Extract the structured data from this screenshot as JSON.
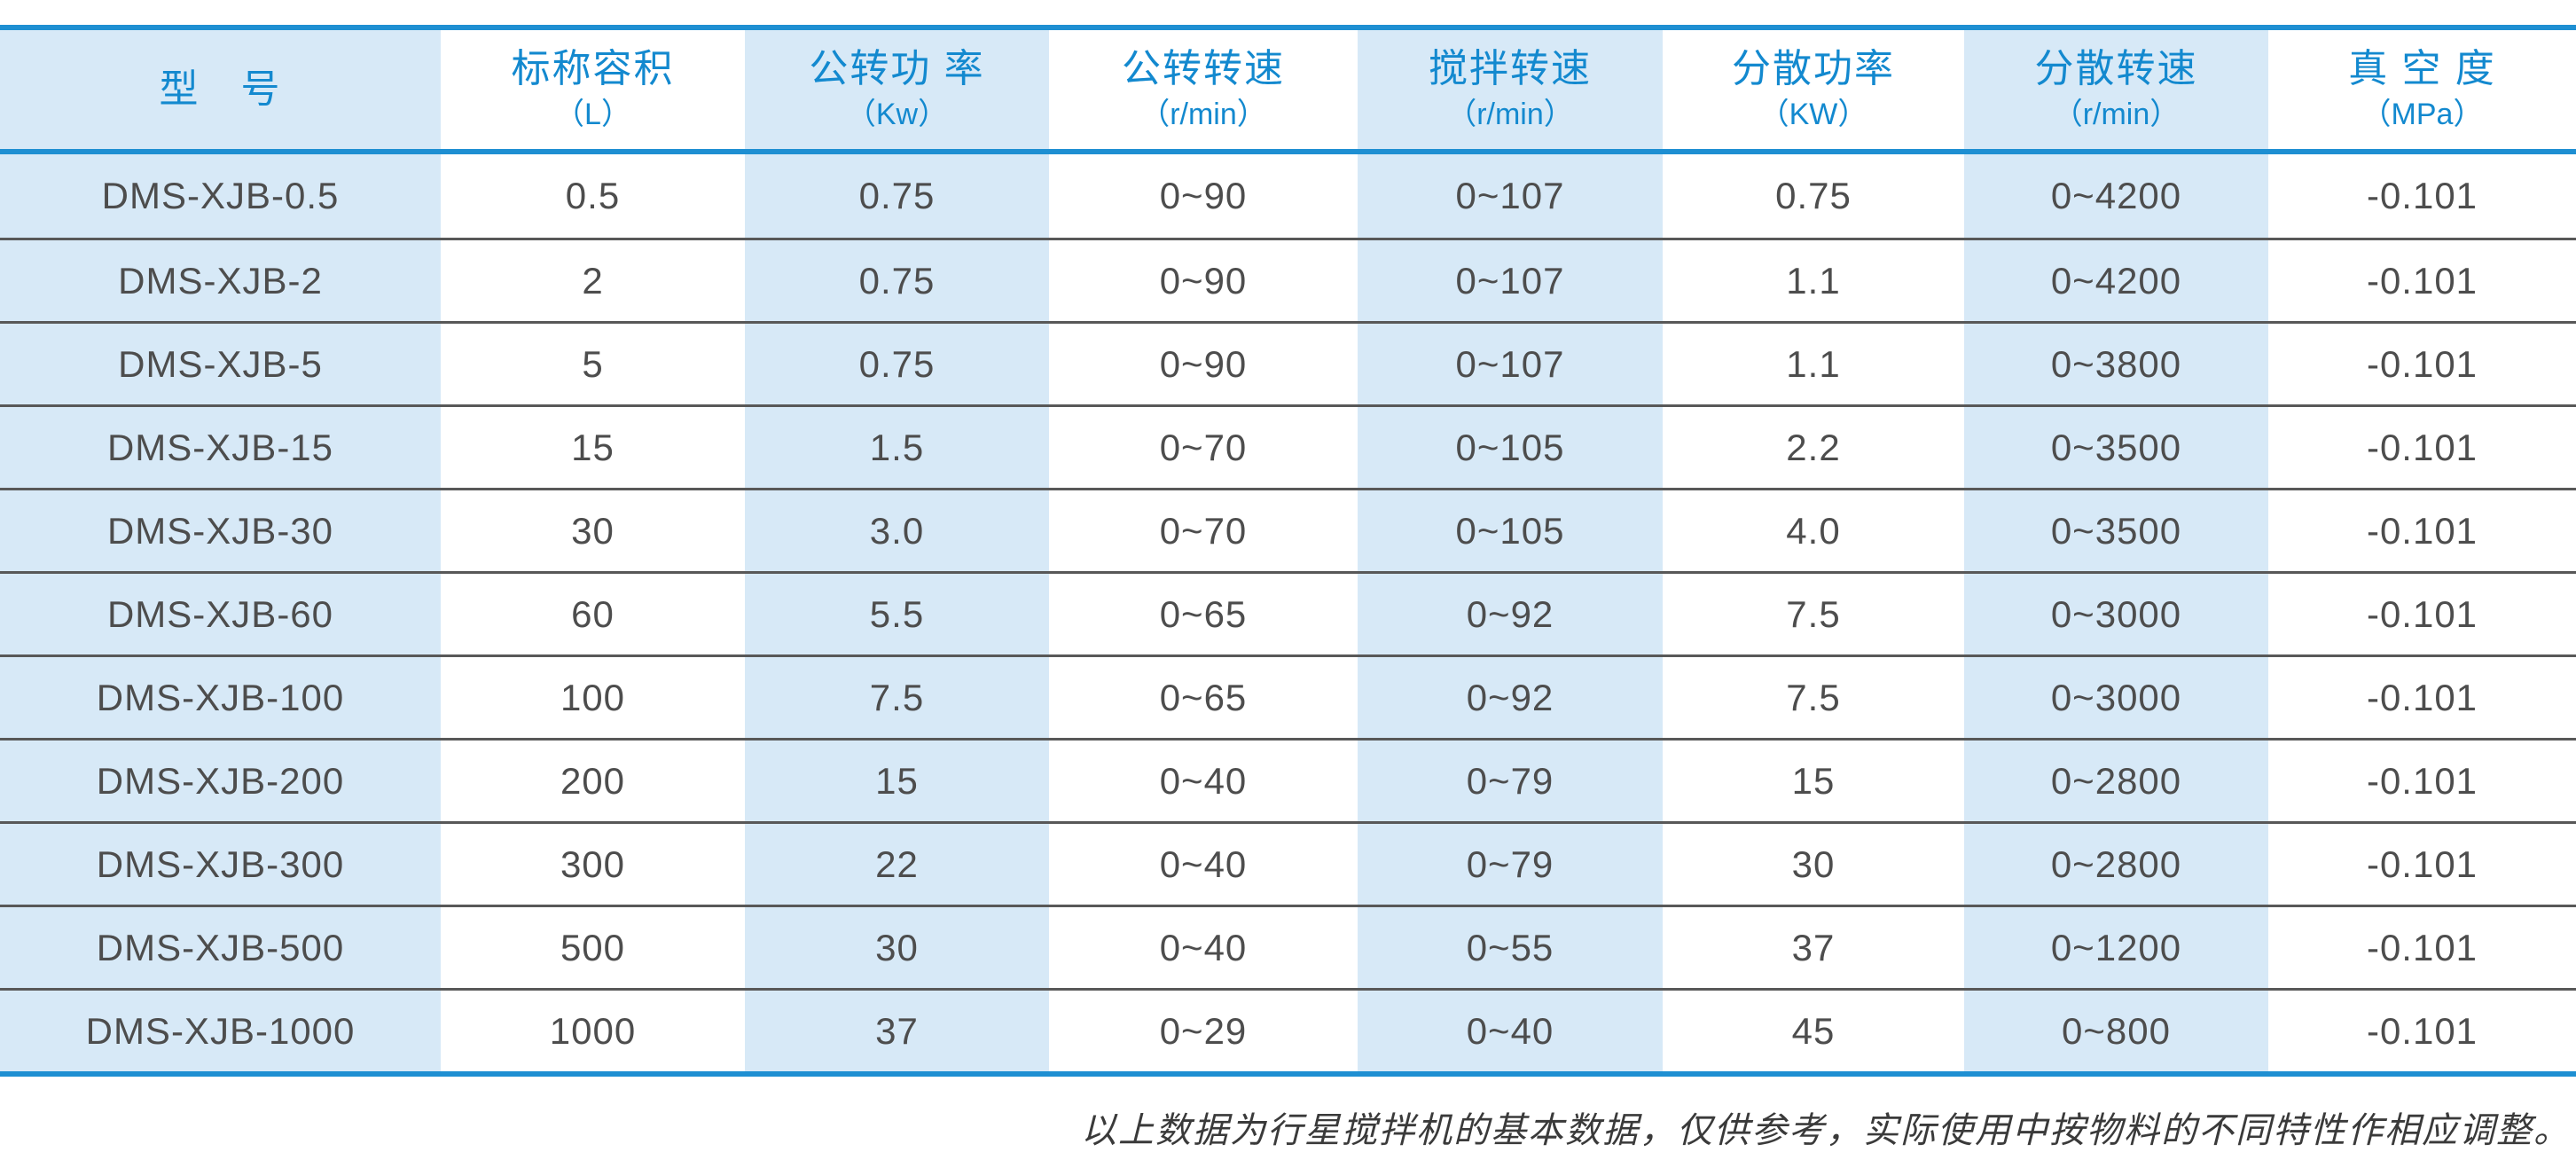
{
  "table": {
    "columns": [
      {
        "title": "型　号",
        "unit": ""
      },
      {
        "title": "标称容积",
        "unit": "（L）"
      },
      {
        "title": "公转功 率",
        "unit": "（Kw）"
      },
      {
        "title": "公转转速",
        "unit": "（r/min）"
      },
      {
        "title": "搅拌转速",
        "unit": "（r/min）"
      },
      {
        "title": "分散功率",
        "unit": "（KW）"
      },
      {
        "title": "分散转速",
        "unit": "（r/min）"
      },
      {
        "title": "真 空 度",
        "unit": "（MPa）"
      }
    ],
    "rows": [
      [
        "DMS-XJB-0.5",
        "0.5",
        "0.75",
        "0~90",
        "0~107",
        "0.75",
        "0~4200",
        "-0.101"
      ],
      [
        "DMS-XJB-2",
        "2",
        "0.75",
        "0~90",
        "0~107",
        "1.1",
        "0~4200",
        "-0.101"
      ],
      [
        "DMS-XJB-5",
        "5",
        "0.75",
        "0~90",
        "0~107",
        "1.1",
        "0~3800",
        "-0.101"
      ],
      [
        "DMS-XJB-15",
        "15",
        "1.5",
        "0~70",
        "0~105",
        "2.2",
        "0~3500",
        "-0.101"
      ],
      [
        "DMS-XJB-30",
        "30",
        "3.0",
        "0~70",
        "0~105",
        "4.0",
        "0~3500",
        "-0.101"
      ],
      [
        "DMS-XJB-60",
        "60",
        "5.5",
        "0~65",
        "0~92",
        "7.5",
        "0~3000",
        "-0.101"
      ],
      [
        "DMS-XJB-100",
        "100",
        "7.5",
        "0~65",
        "0~92",
        "7.5",
        "0~3000",
        "-0.101"
      ],
      [
        "DMS-XJB-200",
        "200",
        "15",
        "0~40",
        "0~79",
        "15",
        "0~2800",
        "-0.101"
      ],
      [
        "DMS-XJB-300",
        "300",
        "22",
        "0~40",
        "0~79",
        "30",
        "0~2800",
        "-0.101"
      ],
      [
        "DMS-XJB-500",
        "500",
        "30",
        "0~40",
        "0~55",
        "37",
        "0~1200",
        "-0.101"
      ],
      [
        "DMS-XJB-1000",
        "1000",
        "37",
        "0~29",
        "0~40",
        "45",
        "0~800",
        "-0.101"
      ]
    ]
  },
  "footer": {
    "note": "以上数据为行星搅拌机的基本数据，仅供参考，实际使用中按物料的不同特性作相应调整。"
  },
  "colors": {
    "bar-blue": "#1e8fd2",
    "header-blue": "#1389cf",
    "band-blue": "#d7e9f7",
    "divider": "#585858",
    "text": "#4d4d4d",
    "footer": "#3a3a3a"
  }
}
